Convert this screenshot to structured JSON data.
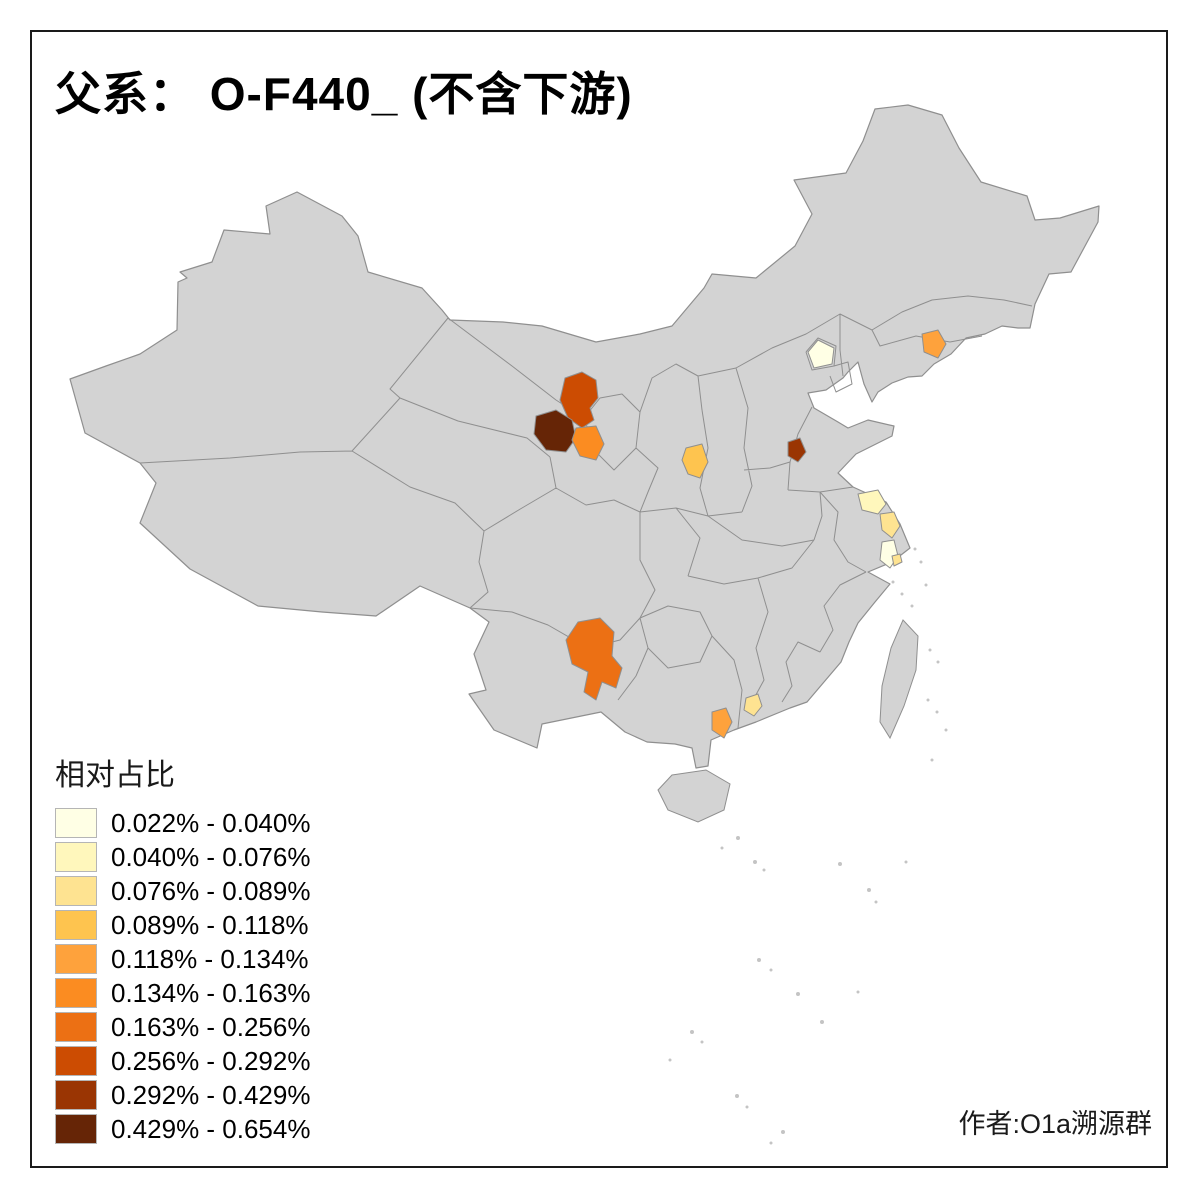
{
  "title": "父系： O-F440_ (不含下游)",
  "legend": {
    "title": "相对占比",
    "items": [
      {
        "range": "0.022% - 0.040%",
        "color": "#FFFFE5"
      },
      {
        "range": "0.040% - 0.076%",
        "color": "#FFF7BC"
      },
      {
        "range": "0.076% - 0.089%",
        "color": "#FEE391"
      },
      {
        "range": "0.089% - 0.118%",
        "color": "#FEC44F"
      },
      {
        "range": "0.118% - 0.134%",
        "color": "#FEA23C"
      },
      {
        "range": "0.134% - 0.163%",
        "color": "#FB8C21"
      },
      {
        "range": "0.163% - 0.256%",
        "color": "#EC7014"
      },
      {
        "range": "0.256% - 0.292%",
        "color": "#CC4C02"
      },
      {
        "range": "0.292% - 0.429%",
        "color": "#9A3503"
      },
      {
        "range": "0.429% - 0.654%",
        "color": "#662506"
      }
    ]
  },
  "attribution": "作者:O1a溯源群",
  "map": {
    "land_color": "#D3D3D3",
    "boundary_color": "#8F8F8F",
    "sea_color": "#FFFFFF",
    "island_color": "#C4C4C4",
    "highlights": [
      {
        "id": "hl-gansu-1",
        "bucket": 8
      },
      {
        "id": "hl-gansu-2",
        "bucket": 10
      },
      {
        "id": "hl-gansu-3",
        "bucket": 6
      },
      {
        "id": "hl-shanxi",
        "bucket": 4
      },
      {
        "id": "hl-shandong",
        "bucket": 9
      },
      {
        "id": "hl-beijing",
        "bucket": 1
      },
      {
        "id": "hl-liaoning",
        "bucket": 5
      },
      {
        "id": "hl-jiangsu-1",
        "bucket": 2
      },
      {
        "id": "hl-jiangsu-2",
        "bucket": 3
      },
      {
        "id": "hl-shanghai-1",
        "bucket": 1
      },
      {
        "id": "hl-shanghai-2",
        "bucket": 3
      },
      {
        "id": "hl-yunnan",
        "bucket": 7
      },
      {
        "id": "hl-guangdong-west",
        "bucket": 5
      },
      {
        "id": "hl-guangdong-east",
        "bucket": 3
      }
    ]
  }
}
